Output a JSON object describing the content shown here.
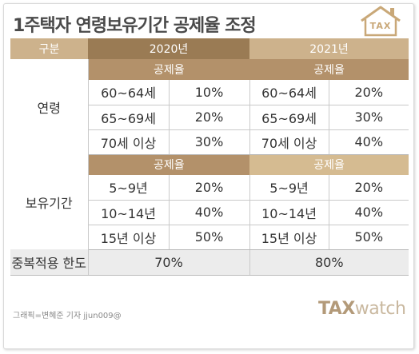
{
  "title": "1주택자 연령보유기간 공제율 조정",
  "icon_label": "TAX",
  "header": {
    "gubun": "구분",
    "y2020": "2020년",
    "y2021": "2021년"
  },
  "rate_label": "공제율",
  "age": {
    "label": "연령",
    "rows": [
      {
        "r2020": "60~64세",
        "v2020": "10%",
        "r2021": "60~64세",
        "v2021": "20%"
      },
      {
        "r2020": "65~69세",
        "v2020": "20%",
        "r2021": "65~69세",
        "v2021": "30%"
      },
      {
        "r2020": "70세 이상",
        "v2020": "30%",
        "r2021": "70세 이상",
        "v2021": "40%"
      }
    ]
  },
  "holding": {
    "label": "보유기간",
    "rows": [
      {
        "r2020": "5~9년",
        "v2020": "20%",
        "r2021": "5~9년",
        "v2021": "20%"
      },
      {
        "r2020": "10~14년",
        "v2020": "40%",
        "r2021": "10~14년",
        "v2021": "40%"
      },
      {
        "r2020": "15년 이상",
        "v2020": "50%",
        "r2021": "15년 이상",
        "v2021": "50%"
      }
    ]
  },
  "limit": {
    "label": "중복적용 한도",
    "v2020": "70%",
    "v2021": "80%"
  },
  "credit": "그래픽=변혜준 기자 jjun009@",
  "brand": {
    "part1": "TAX",
    "part2": "watch"
  },
  "colors": {
    "gold_dark": "#9a7b54",
    "gold_mid": "#b3916a",
    "gold_light": "#cdb28c"
  }
}
